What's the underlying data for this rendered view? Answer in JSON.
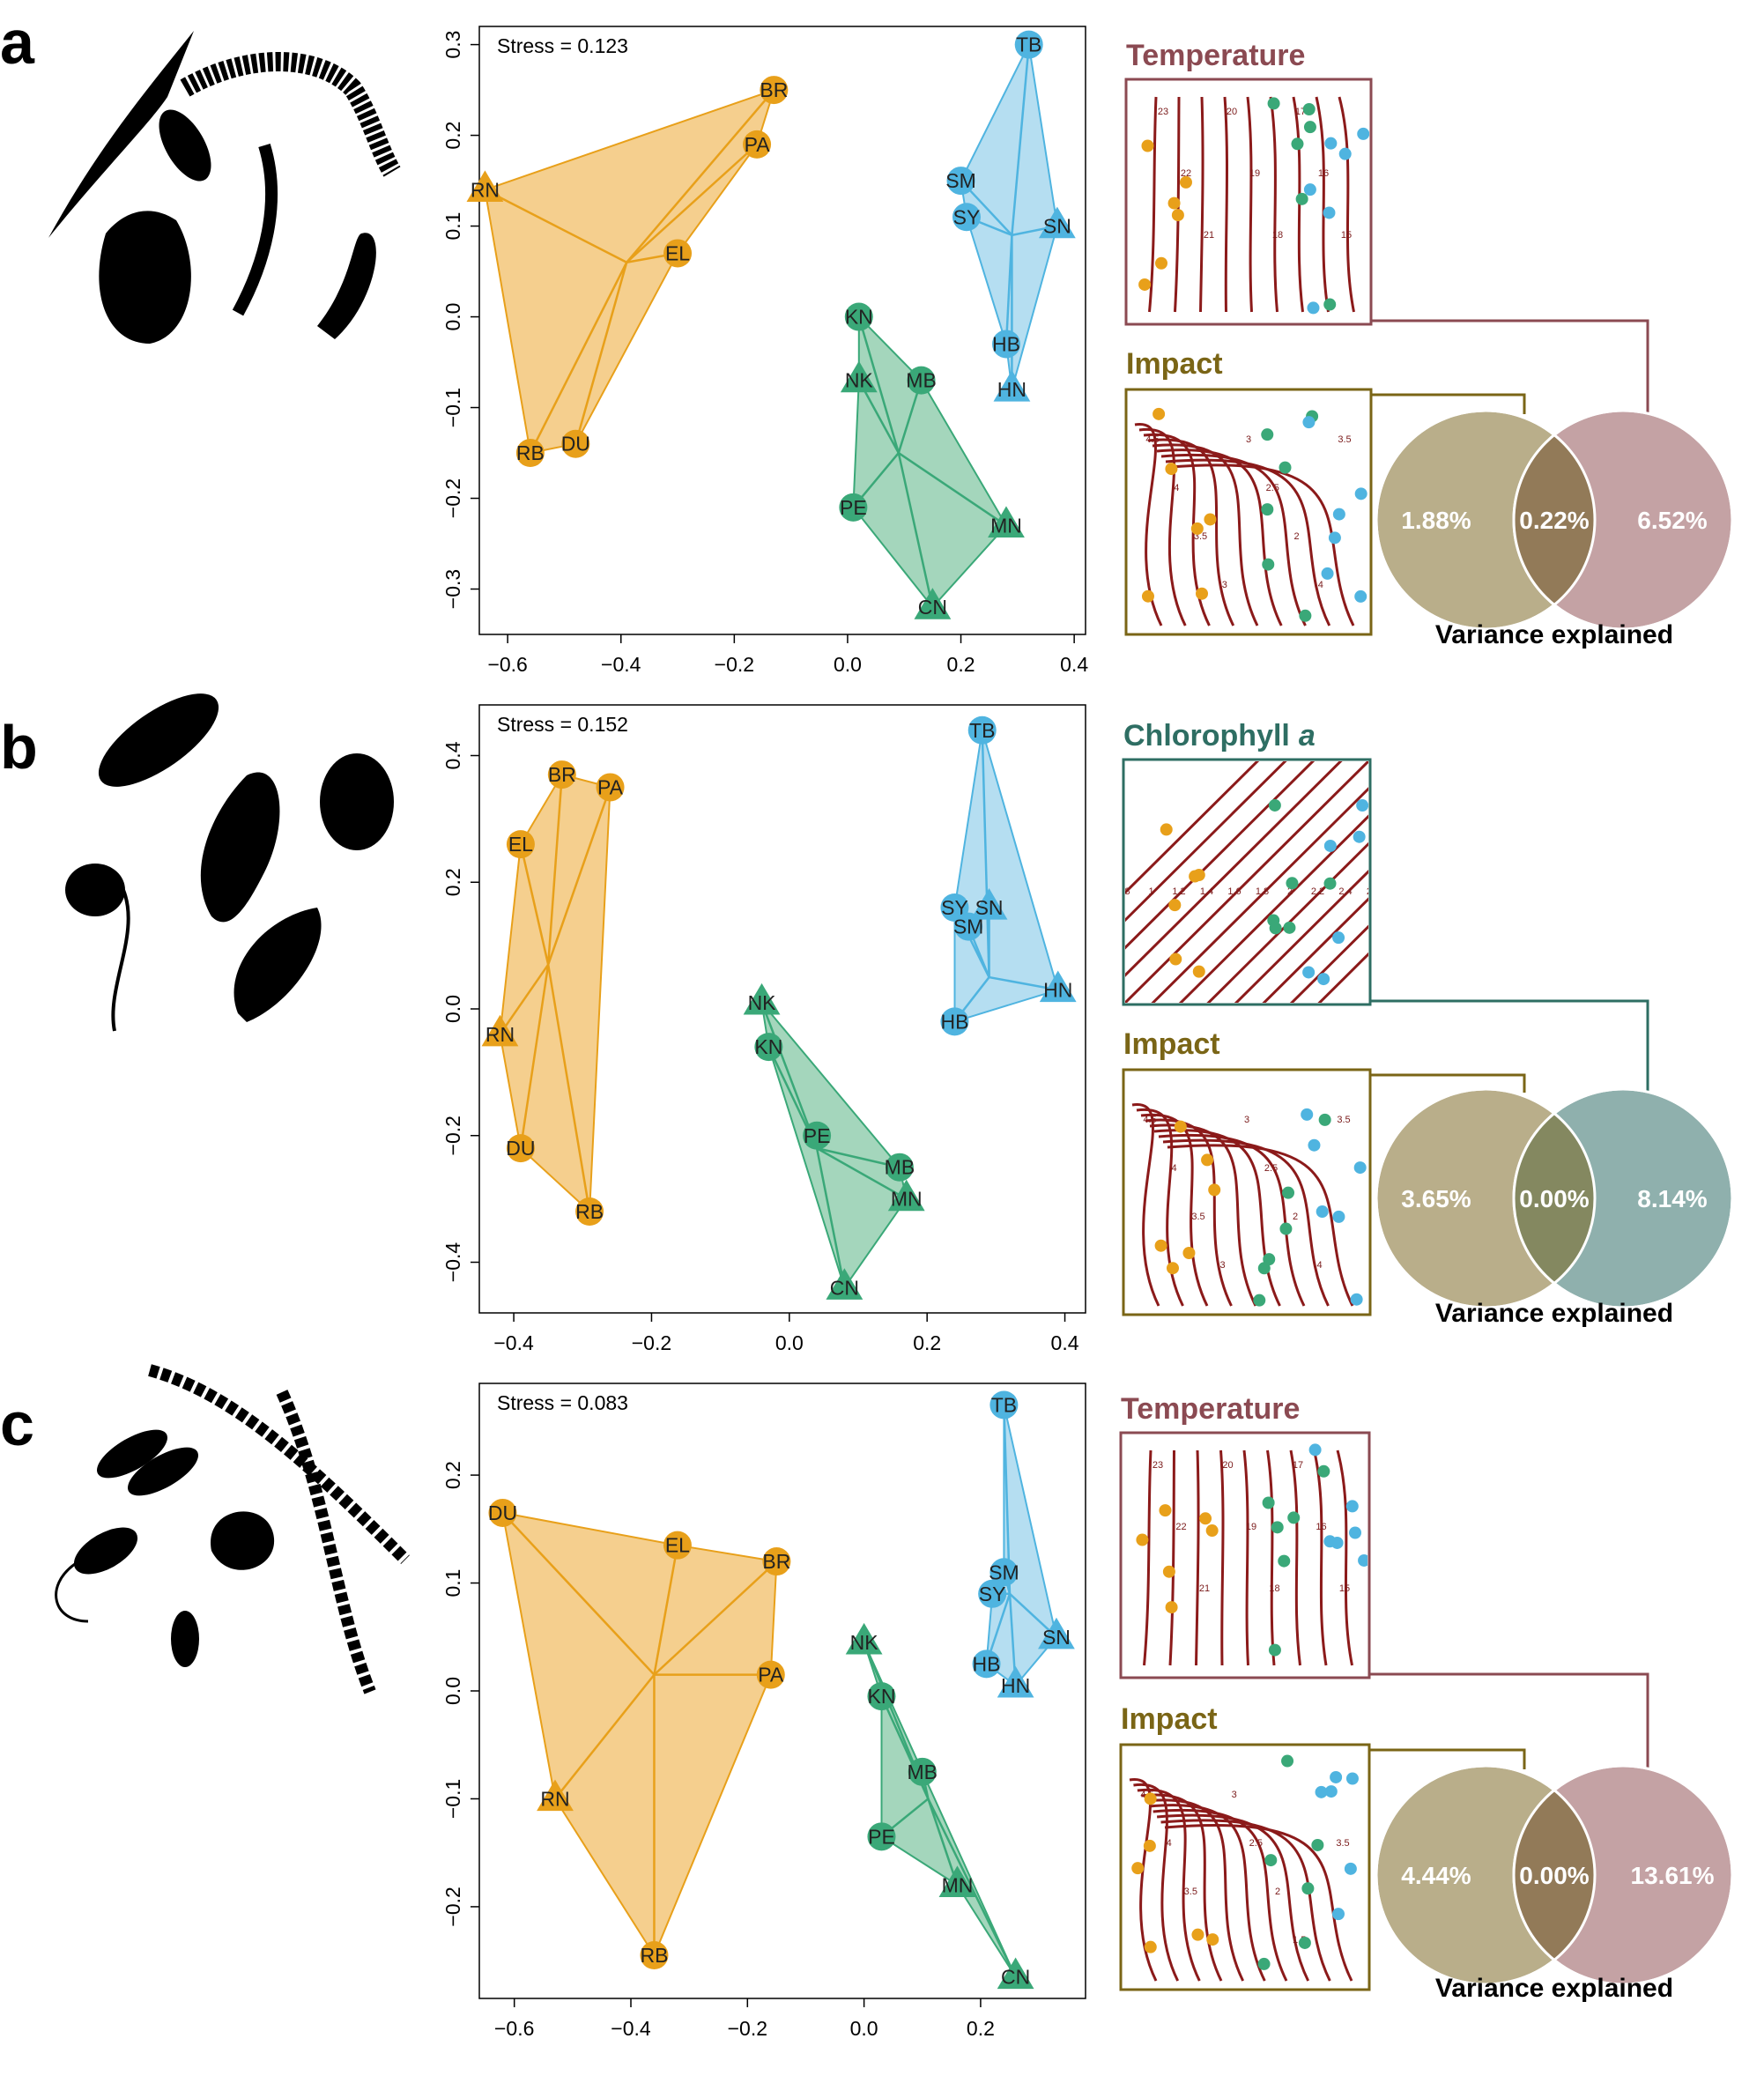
{
  "colors": {
    "orange": "#e8a01a",
    "orange_fill": "#f3c77a",
    "blue": "#4fb4e0",
    "blue_fill": "#a8d8ef",
    "green": "#3aa878",
    "green_fill": "#94cfb0",
    "contour": "#8b1a1a",
    "temperature": "#8b4a52",
    "impact": "#7a6516",
    "chlorophyll": "#2e6e63",
    "venn_impact": "#b9ae8a",
    "venn_temperature": "#c4a2a4",
    "venn_chlorophyll": "#8fb0ad",
    "venn_overlap_temp": "#927a58",
    "venn_overlap_chl": "#848860"
  },
  "panels": [
    {
      "letter": "a",
      "organism_icons": "copepod, polychaete worm, hydrozoan, tunicate, bivalve silhouettes",
      "chart_data": {
        "type": "scatter",
        "stress": "Stress = 0.123",
        "xlim": [
          -0.65,
          0.42
        ],
        "ylim": [
          -0.35,
          0.32
        ],
        "xticks": [
          -0.6,
          -0.4,
          -0.2,
          0.0,
          0.2,
          0.4
        ],
        "xtick_labels": [
          "−0.6",
          "−0.4",
          "−0.2",
          "0.0",
          "0.2",
          "0.4"
        ],
        "yticks": [
          -0.3,
          -0.2,
          -0.1,
          0.0,
          0.1,
          0.2,
          0.3
        ],
        "ytick_labels": [
          "−0.3",
          "−0.2",
          "−0.1",
          "0.0",
          "0.1",
          "0.2",
          "0.3"
        ],
        "groups": [
          {
            "color": "orange",
            "centroid": [
              -0.39,
              0.06
            ],
            "hull": [
              "RN",
              "BR",
              "PA",
              "EL",
              "DU",
              "RB"
            ],
            "points": [
              {
                "label": "BR",
                "x": -0.13,
                "y": 0.25,
                "shape": "circle"
              },
              {
                "label": "PA",
                "x": -0.16,
                "y": 0.19,
                "shape": "circle"
              },
              {
                "label": "RN",
                "x": -0.64,
                "y": 0.14,
                "shape": "triangle"
              },
              {
                "label": "EL",
                "x": -0.3,
                "y": 0.07,
                "shape": "circle"
              },
              {
                "label": "DU",
                "x": -0.48,
                "y": -0.14,
                "shape": "circle"
              },
              {
                "label": "RB",
                "x": -0.56,
                "y": -0.15,
                "shape": "circle"
              }
            ]
          },
          {
            "color": "blue",
            "centroid": [
              0.29,
              0.09
            ],
            "hull": [
              "TB",
              "SN",
              "HN",
              "HB",
              "SY",
              "SM"
            ],
            "points": [
              {
                "label": "TB",
                "x": 0.32,
                "y": 0.3,
                "shape": "circle"
              },
              {
                "label": "SM",
                "x": 0.2,
                "y": 0.15,
                "shape": "circle"
              },
              {
                "label": "SY",
                "x": 0.21,
                "y": 0.11,
                "shape": "circle"
              },
              {
                "label": "SN",
                "x": 0.37,
                "y": 0.1,
                "shape": "triangle"
              },
              {
                "label": "HB",
                "x": 0.28,
                "y": -0.03,
                "shape": "circle"
              },
              {
                "label": "HN",
                "x": 0.29,
                "y": -0.08,
                "shape": "triangle"
              }
            ]
          },
          {
            "color": "green",
            "centroid": [
              0.09,
              -0.15
            ],
            "hull": [
              "KN",
              "MB",
              "MN",
              "CN",
              "PE",
              "NK"
            ],
            "points": [
              {
                "label": "KN",
                "x": 0.02,
                "y": 0.0,
                "shape": "circle"
              },
              {
                "label": "NK",
                "x": 0.02,
                "y": -0.07,
                "shape": "triangle"
              },
              {
                "label": "MB",
                "x": 0.13,
                "y": -0.07,
                "shape": "circle"
              },
              {
                "label": "PE",
                "x": 0.01,
                "y": -0.21,
                "shape": "circle"
              },
              {
                "label": "MN",
                "x": 0.28,
                "y": -0.23,
                "shape": "triangle"
              },
              {
                "label": "CN",
                "x": 0.15,
                "y": -0.32,
                "shape": "triangle"
              }
            ]
          }
        ]
      },
      "top_map": {
        "title": "Temperature",
        "color_key": "temperature",
        "contour_labels": [
          "23",
          "22",
          "21",
          "20",
          "19",
          "18",
          "17",
          "16",
          "15"
        ]
      },
      "bottom_map": {
        "title": "Impact",
        "color_key": "impact",
        "contour_labels": [
          "4.5",
          "4",
          "3.5",
          "3",
          "3",
          "2.5",
          "2",
          "4",
          "3.5"
        ]
      },
      "venn": {
        "left": "1.88%",
        "middle": "0.22%",
        "right": "6.52%",
        "right_color": "venn_temperature",
        "overlap_color": "venn_overlap_temp",
        "caption": "Variance explained"
      }
    },
    {
      "letter": "b",
      "organism_icons": "diatom, ciliate, dinoflagellate, flagellate silhouettes",
      "chart_data": {
        "type": "scatter",
        "stress": "Stress = 0.152",
        "xlim": [
          -0.45,
          0.43
        ],
        "ylim": [
          -0.48,
          0.48
        ],
        "xticks": [
          -0.4,
          -0.2,
          0.0,
          0.2,
          0.4
        ],
        "xtick_labels": [
          "−0.4",
          "−0.2",
          "0.0",
          "0.2",
          "0.4"
        ],
        "yticks": [
          -0.4,
          -0.2,
          0.0,
          0.2,
          0.4
        ],
        "ytick_labels": [
          "−0.4",
          "−0.2",
          "0.0",
          "0.2",
          "0.4"
        ],
        "groups": [
          {
            "color": "orange",
            "centroid": [
              -0.35,
              0.07
            ],
            "hull": [
              "BR",
              "PA",
              "RB",
              "DU",
              "RN",
              "EL"
            ],
            "points": [
              {
                "label": "BR",
                "x": -0.33,
                "y": 0.37,
                "shape": "circle"
              },
              {
                "label": "PA",
                "x": -0.26,
                "y": 0.35,
                "shape": "circle"
              },
              {
                "label": "EL",
                "x": -0.39,
                "y": 0.26,
                "shape": "circle"
              },
              {
                "label": "RN",
                "x": -0.42,
                "y": -0.04,
                "shape": "triangle"
              },
              {
                "label": "DU",
                "x": -0.39,
                "y": -0.22,
                "shape": "circle"
              },
              {
                "label": "RB",
                "x": -0.29,
                "y": -0.32,
                "shape": "circle"
              }
            ]
          },
          {
            "color": "blue",
            "centroid": [
              0.29,
              0.05
            ],
            "hull": [
              "TB",
              "HN",
              "HB",
              "SY"
            ],
            "points": [
              {
                "label": "TB",
                "x": 0.28,
                "y": 0.44,
                "shape": "circle"
              },
              {
                "label": "SY",
                "x": 0.24,
                "y": 0.16,
                "shape": "circle"
              },
              {
                "label": "SN",
                "x": 0.29,
                "y": 0.16,
                "shape": "triangle"
              },
              {
                "label": "SM",
                "x": 0.26,
                "y": 0.13,
                "shape": "circle"
              },
              {
                "label": "HN",
                "x": 0.39,
                "y": 0.03,
                "shape": "triangle"
              },
              {
                "label": "HB",
                "x": 0.24,
                "y": -0.02,
                "shape": "circle"
              }
            ]
          },
          {
            "color": "green",
            "centroid": [
              0.04,
              -0.22
            ],
            "hull": [
              "NK",
              "MB",
              "MN",
              "CN",
              "KN"
            ],
            "points": [
              {
                "label": "NK",
                "x": -0.04,
                "y": 0.01,
                "shape": "triangle"
              },
              {
                "label": "KN",
                "x": -0.03,
                "y": -0.06,
                "shape": "circle"
              },
              {
                "label": "PE",
                "x": 0.04,
                "y": -0.2,
                "shape": "circle"
              },
              {
                "label": "MB",
                "x": 0.16,
                "y": -0.25,
                "shape": "circle"
              },
              {
                "label": "MN",
                "x": 0.17,
                "y": -0.3,
                "shape": "triangle"
              },
              {
                "label": "CN",
                "x": 0.08,
                "y": -0.44,
                "shape": "triangle"
              }
            ]
          }
        ]
      },
      "top_map": {
        "title": "Chlorophyll",
        "title_italic": "a",
        "color_key": "chlorophyll",
        "contour_labels": [
          "0.8",
          "1",
          "1.2",
          "1.4",
          "1.6",
          "1.8",
          "2",
          "2.2",
          "2.4",
          "2.6",
          "2.8",
          "3"
        ]
      },
      "bottom_map": {
        "title": "Impact",
        "color_key": "impact",
        "contour_labels": [
          "4.5",
          "4",
          "3.5",
          "3",
          "3",
          "2.5",
          "2",
          "4",
          "3.5"
        ]
      },
      "venn": {
        "left": "3.65%",
        "middle": "0.00%",
        "right": "8.14%",
        "right_color": "venn_chlorophyll",
        "overlap_color": "venn_overlap_chl",
        "caption": "Variance explained"
      }
    },
    {
      "letter": "c",
      "organism_icons": "filamentous cyanobacteria, bacteria, diatom silhouettes",
      "chart_data": {
        "type": "scatter",
        "stress": "Stress = 0.083",
        "xlim": [
          -0.66,
          0.38
        ],
        "ylim": [
          -0.285,
          0.285
        ],
        "xticks": [
          -0.6,
          -0.4,
          -0.2,
          0.0,
          0.2
        ],
        "xtick_labels": [
          "−0.6",
          "−0.4",
          "−0.2",
          "0.0",
          "0.2"
        ],
        "yticks": [
          -0.2,
          -0.1,
          0.0,
          0.1,
          0.2
        ],
        "ytick_labels": [
          "−0.2",
          "−0.1",
          "0.0",
          "0.1",
          "0.2"
        ],
        "groups": [
          {
            "color": "orange",
            "centroid": [
              -0.36,
              0.015
            ],
            "hull": [
              "DU",
              "EL",
              "BR",
              "PA",
              "RB",
              "RN"
            ],
            "points": [
              {
                "label": "DU",
                "x": -0.62,
                "y": 0.165,
                "shape": "circle"
              },
              {
                "label": "EL",
                "x": -0.32,
                "y": 0.135,
                "shape": "circle"
              },
              {
                "label": "BR",
                "x": -0.15,
                "y": 0.12,
                "shape": "circle"
              },
              {
                "label": "PA",
                "x": -0.16,
                "y": 0.015,
                "shape": "circle"
              },
              {
                "label": "RN",
                "x": -0.53,
                "y": -0.1,
                "shape": "triangle"
              },
              {
                "label": "RB",
                "x": -0.36,
                "y": -0.245,
                "shape": "circle"
              }
            ]
          },
          {
            "color": "blue",
            "centroid": [
              0.25,
              0.09
            ],
            "hull": [
              "TB",
              "SN",
              "HN",
              "HB",
              "SY",
              "SM"
            ],
            "points": [
              {
                "label": "TB",
                "x": 0.24,
                "y": 0.265,
                "shape": "circle"
              },
              {
                "label": "SM",
                "x": 0.24,
                "y": 0.11,
                "shape": "circle"
              },
              {
                "label": "SY",
                "x": 0.22,
                "y": 0.09,
                "shape": "circle"
              },
              {
                "label": "SN",
                "x": 0.33,
                "y": 0.05,
                "shape": "triangle"
              },
              {
                "label": "HB",
                "x": 0.21,
                "y": 0.025,
                "shape": "circle"
              },
              {
                "label": "HN",
                "x": 0.26,
                "y": 0.005,
                "shape": "triangle"
              }
            ]
          },
          {
            "color": "green",
            "centroid": [
              0.11,
              -0.1
            ],
            "hull": [
              "NK",
              "MB",
              "CN",
              "MN",
              "PE",
              "KN"
            ],
            "points": [
              {
                "label": "NK",
                "x": 0.0,
                "y": 0.045,
                "shape": "triangle"
              },
              {
                "label": "KN",
                "x": 0.03,
                "y": -0.005,
                "shape": "circle"
              },
              {
                "label": "MB",
                "x": 0.1,
                "y": -0.075,
                "shape": "circle"
              },
              {
                "label": "PE",
                "x": 0.03,
                "y": -0.135,
                "shape": "circle"
              },
              {
                "label": "MN",
                "x": 0.16,
                "y": -0.18,
                "shape": "triangle"
              },
              {
                "label": "CN",
                "x": 0.26,
                "y": -0.265,
                "shape": "triangle"
              }
            ]
          }
        ]
      },
      "top_map": {
        "title": "Temperature",
        "color_key": "temperature",
        "contour_labels": [
          "23",
          "22",
          "21",
          "20",
          "19",
          "18",
          "17",
          "16",
          "15"
        ]
      },
      "bottom_map": {
        "title": "Impact",
        "color_key": "impact",
        "contour_labels": [
          "4.5",
          "4",
          "3.5",
          "3",
          "3",
          "2.5",
          "2",
          "1.5",
          "4",
          "3.5"
        ]
      },
      "venn": {
        "left": "4.44%",
        "middle": "0.00%",
        "right": "13.61%",
        "right_color": "venn_temperature",
        "overlap_color": "venn_overlap_temp",
        "caption": "Variance explained"
      }
    }
  ]
}
